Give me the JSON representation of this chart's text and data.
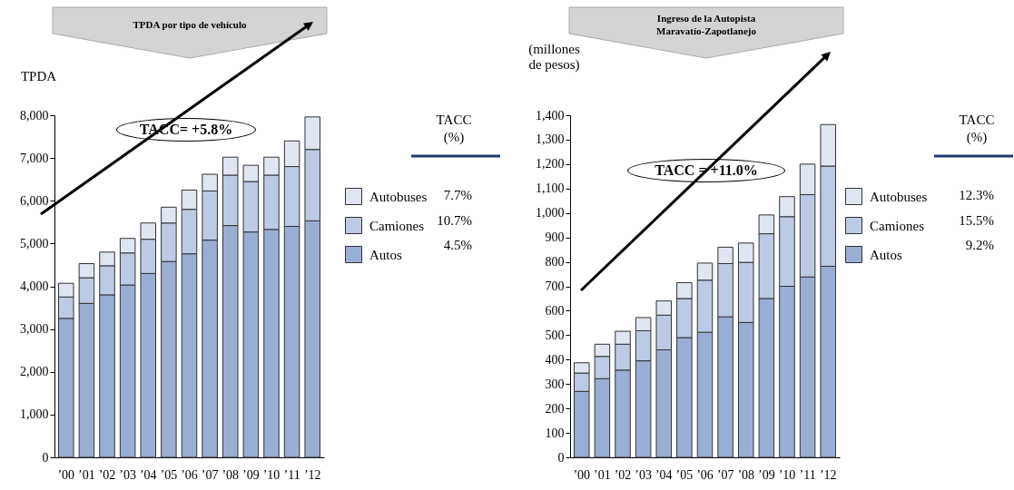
{
  "chart_data": [
    {
      "type": "bar",
      "title": "TPDA por tipo de vehículo",
      "ylabel": "TPDA",
      "categories": [
        "’00",
        "’01",
        "’02",
        "’03",
        "’04",
        "’05",
        "’06",
        "’07",
        "’08",
        "’09",
        "’10",
        "’11",
        "’12"
      ],
      "stacked": true,
      "legend": "right",
      "ylim": [
        0,
        8000
      ],
      "yticks": [
        0,
        {
          "value": 1000,
          "label": "1,000"
        },
        {
          "value": 2000,
          "label": "2,000"
        },
        {
          "value": 3000,
          "label": "3,000"
        },
        {
          "value": 4000,
          "label": "4,000"
        },
        {
          "value": 5000,
          "label": "5,000"
        },
        {
          "value": 6000,
          "label": "6,000"
        },
        {
          "value": 7000,
          "label": "7,000"
        },
        {
          "value": 8000,
          "label": "8,000"
        }
      ],
      "series": [
        {
          "name": "Autos",
          "color": "#9aaed3",
          "values": [
            3250,
            3600,
            3800,
            4030,
            4300,
            4580,
            4760,
            5080,
            5420,
            5270,
            5330,
            5400,
            5530
          ]
        },
        {
          "name": "Camiones",
          "color": "#bccae3",
          "values": [
            500,
            600,
            680,
            750,
            800,
            900,
            1040,
            1150,
            1180,
            1180,
            1270,
            1400,
            1670
          ]
        },
        {
          "name": "Autobuses",
          "color": "#dfe5f1",
          "values": [
            320,
            330,
            320,
            340,
            380,
            370,
            450,
            390,
            420,
            380,
            420,
            600,
            760
          ]
        }
      ],
      "annotations": [
        "TACC= +5.8%",
        "TACC\n(%)",
        "7.7%",
        "10.7%",
        "4.5%"
      ]
    },
    {
      "type": "bar",
      "title": "Ingreso de la Autopista\nMaravatío-Zapotlanejo",
      "ylabel": "(millones\nde pesos)",
      "categories": [
        "’00",
        "’01",
        "’02",
        "’03",
        "’04",
        "’05",
        "’06",
        "’07",
        "’08",
        "’09",
        "’10",
        "’11",
        "’12"
      ],
      "stacked": true,
      "legend": "right",
      "ylim": [
        0,
        1400
      ],
      "yticks": [
        0,
        100,
        200,
        300,
        400,
        500,
        600,
        700,
        800,
        900,
        {
          "value": 1000,
          "label": "1,000"
        },
        {
          "value": 1100,
          "label": "1,100"
        },
        {
          "value": 1200,
          "label": "1,200"
        },
        {
          "value": 1300,
          "label": "1,300"
        },
        {
          "value": 1400,
          "label": "1,400"
        }
      ],
      "series": [
        {
          "name": "Autos",
          "color": "#9aaed3",
          "values": [
            270,
            322,
            357,
            395,
            440,
            490,
            512,
            575,
            552,
            650,
            700,
            738,
            782
          ]
        },
        {
          "name": "Camiones",
          "color": "#bccae3",
          "values": [
            75,
            91,
            106,
            123,
            142,
            160,
            213,
            218,
            246,
            265,
            285,
            337,
            410
          ]
        },
        {
          "name": "Autobuses",
          "color": "#dfe5f1",
          "values": [
            42,
            50,
            53,
            54,
            58,
            65,
            70,
            67,
            79,
            77,
            82,
            125,
            170
          ]
        }
      ],
      "annotations": [
        "TACC = +11.0%",
        "TACC\n(%)",
        "12.3%",
        "15.5%",
        "9.2%"
      ]
    }
  ]
}
